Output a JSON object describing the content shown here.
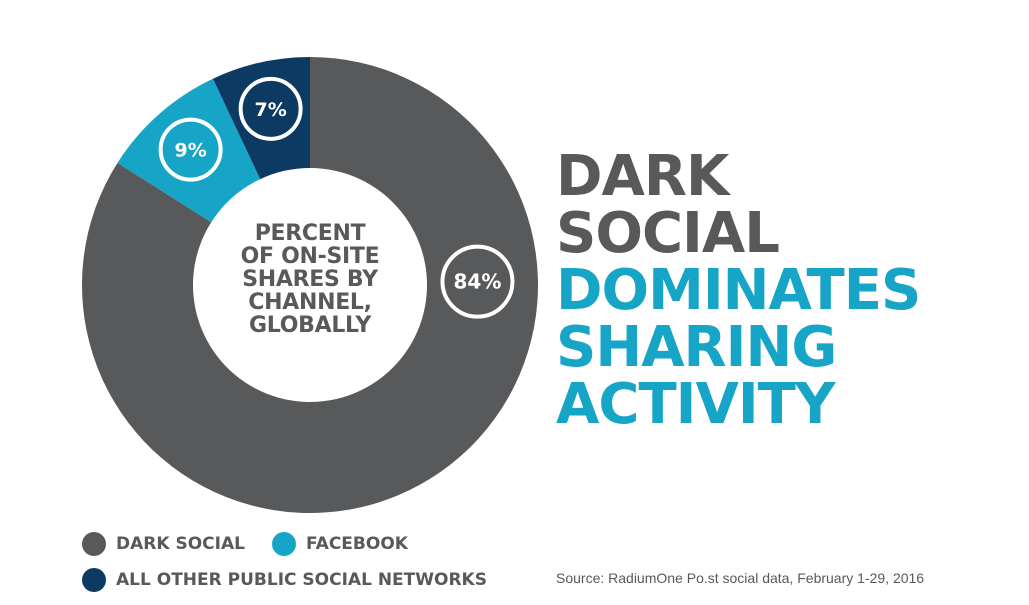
{
  "chart_data": {
    "type": "pie",
    "center_label": [
      "PERCENT",
      "OF ON-SITE",
      "SHARES BY",
      "CHANNEL,",
      "GLOBALLY"
    ],
    "slices": [
      {
        "name": "DARK SOCIAL",
        "value": 84,
        "label": "84%",
        "color": "#58595b"
      },
      {
        "name": "FACEBOOK",
        "value": 9,
        "label": "9%",
        "color": "#16a5c6"
      },
      {
        "name": "ALL OTHER PUBLIC SOCIAL NETWORKS",
        "value": 7,
        "label": "7%",
        "color": "#0d3a63"
      }
    ]
  },
  "headline": {
    "line1": "DARK",
    "line2": "SOCIAL",
    "line3": "DOMINATES",
    "line4": "SHARING",
    "line5": "ACTIVITY"
  },
  "legend": {
    "dark_social": "DARK SOCIAL",
    "facebook": "FACEBOOK",
    "other": "ALL OTHER PUBLIC SOCIAL NETWORKS"
  },
  "source": "Source: RadiumOne Po.st social data, February 1-29, 2016",
  "colors": {
    "dark_gray": "#58595b",
    "teal": "#16a5c6",
    "navy": "#0d3a63"
  }
}
